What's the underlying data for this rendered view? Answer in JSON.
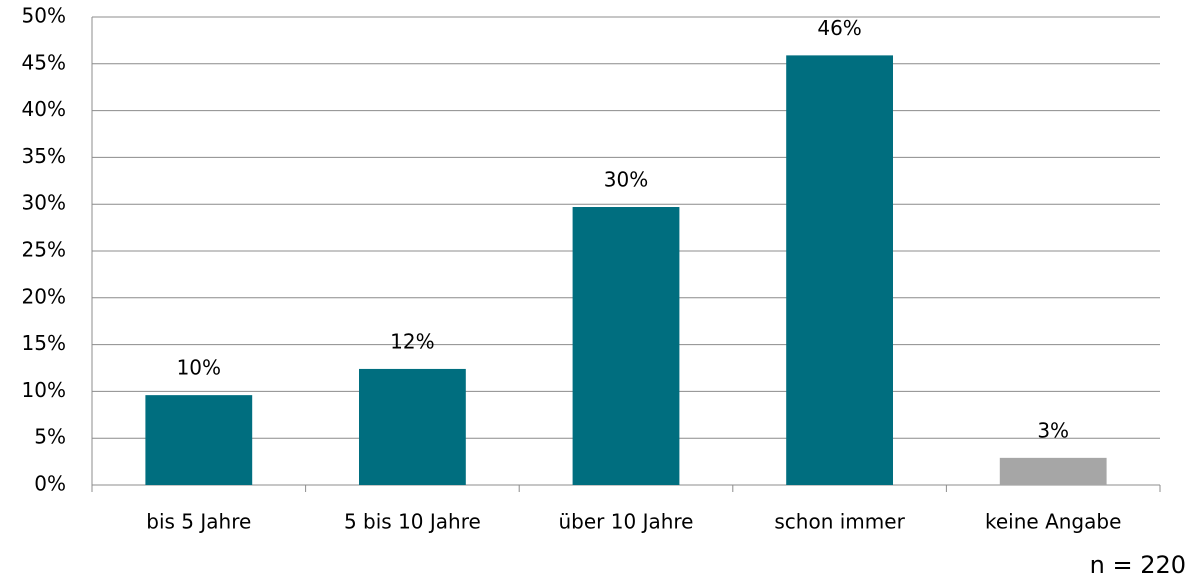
{
  "chart_data": {
    "type": "bar",
    "categories": [
      "bis 5 Jahre",
      "5 bis 10 Jahre",
      "über 10 Jahre",
      "schon immer",
      "keine Angabe"
    ],
    "values": [
      9.6,
      12.4,
      29.7,
      45.9,
      2.9
    ],
    "value_labels": [
      "10%",
      "12%",
      "30%",
      "46%",
      "3%"
    ],
    "colors": [
      "#006e7f",
      "#006e7f",
      "#006e7f",
      "#006e7f",
      "#a6a6a6"
    ],
    "ylim": [
      0,
      50
    ],
    "yticks": [
      {
        "value": 0,
        "label": "0%"
      },
      {
        "value": 5,
        "label": "5%"
      },
      {
        "value": 10,
        "label": "10%"
      },
      {
        "value": 15,
        "label": "15%"
      },
      {
        "value": 20,
        "label": "20%"
      },
      {
        "value": 25,
        "label": "25%"
      },
      {
        "value": 30,
        "label": "30%"
      },
      {
        "value": 35,
        "label": "35%"
      },
      {
        "value": 40,
        "label": "40%"
      },
      {
        "value": 45,
        "label": "45%"
      },
      {
        "value": 50,
        "label": "50%"
      }
    ],
    "grid": true,
    "annotation": "n = 220"
  }
}
